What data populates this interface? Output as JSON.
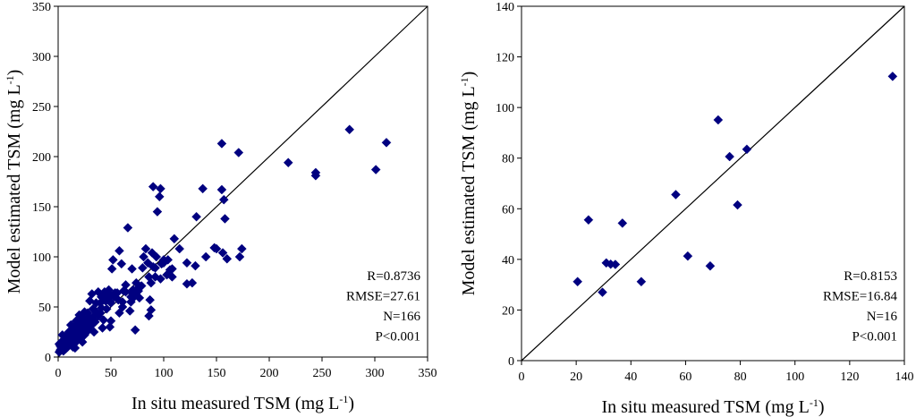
{
  "chart_data": [
    {
      "type": "scatter",
      "xlabel": "In situ measured TSM (mg L",
      "xlabel_sup": "-1",
      "xlabel_tail": ")",
      "ylabel": "Model estimated TSM (mg L",
      "ylabel_sup": "-1",
      "ylabel_tail": ")",
      "xlim": [
        0,
        350
      ],
      "ylim": [
        0,
        350
      ],
      "xticks": [
        "0",
        "50",
        "100",
        "150",
        "200",
        "250",
        "300",
        "350"
      ],
      "yticks": [
        "0",
        "50",
        "100",
        "150",
        "200",
        "250",
        "300",
        "350"
      ],
      "grid": false,
      "reference_line": "1:1",
      "marker_color": "#000080",
      "stats": [
        "R=0.8736",
        "RMSE=27.61",
        "N=166",
        "P<0.001"
      ],
      "points": [
        [
          311,
          214
        ],
        [
          301,
          187
        ],
        [
          276,
          227
        ],
        [
          244,
          184
        ],
        [
          244,
          181
        ],
        [
          218,
          194
        ],
        [
          174,
          108
        ],
        [
          171,
          204
        ],
        [
          172,
          100
        ],
        [
          155,
          213
        ],
        [
          155,
          167
        ],
        [
          157,
          157
        ],
        [
          158,
          138
        ],
        [
          160,
          98
        ],
        [
          156,
          104
        ],
        [
          150,
          108
        ],
        [
          148,
          109
        ],
        [
          137,
          168
        ],
        [
          140,
          100
        ],
        [
          131,
          140
        ],
        [
          130,
          91
        ],
        [
          127,
          74
        ],
        [
          122,
          73
        ],
        [
          122,
          94
        ],
        [
          115,
          108
        ],
        [
          110,
          118
        ],
        [
          108,
          88
        ],
        [
          108,
          80
        ],
        [
          106,
          87
        ],
        [
          104,
          97
        ],
        [
          103,
          82
        ],
        [
          100,
          94
        ],
        [
          100,
          97
        ],
        [
          98,
          93
        ],
        [
          97,
          78
        ],
        [
          97,
          168
        ],
        [
          96,
          160
        ],
        [
          94,
          145
        ],
        [
          93,
          100
        ],
        [
          92,
          89
        ],
        [
          92,
          80
        ],
        [
          90,
          170
        ],
        [
          89,
          104
        ],
        [
          90,
          90
        ],
        [
          88,
          74
        ],
        [
          86,
          80
        ],
        [
          85,
          94
        ],
        [
          87,
          57
        ],
        [
          88,
          47
        ],
        [
          86,
          41
        ],
        [
          83,
          108
        ],
        [
          81,
          100
        ],
        [
          80,
          89
        ],
        [
          79,
          71
        ],
        [
          77,
          59
        ],
        [
          76,
          66
        ],
        [
          75,
          68
        ],
        [
          74,
          74
        ],
        [
          73,
          62
        ],
        [
          73,
          27
        ],
        [
          72,
          60
        ],
        [
          70,
          88
        ],
        [
          71,
          67
        ],
        [
          70,
          64
        ],
        [
          69,
          60
        ],
        [
          69,
          55
        ],
        [
          68,
          46
        ],
        [
          66,
          129
        ],
        [
          64,
          72
        ],
        [
          64,
          65
        ],
        [
          62,
          66
        ],
        [
          61,
          55
        ],
        [
          61,
          50
        ],
        [
          60,
          93
        ],
        [
          58,
          106
        ],
        [
          58,
          44
        ],
        [
          57,
          57
        ],
        [
          56,
          64
        ],
        [
          55,
          59
        ],
        [
          54,
          64
        ],
        [
          53,
          60
        ],
        [
          52,
          97
        ],
        [
          51,
          88
        ],
        [
          50,
          61
        ],
        [
          50,
          54
        ],
        [
          50,
          36
        ],
        [
          49,
          30
        ],
        [
          48,
          67
        ],
        [
          47,
          58
        ],
        [
          46,
          62
        ],
        [
          46,
          48
        ],
        [
          45,
          56
        ],
        [
          44,
          65
        ],
        [
          43,
          37
        ],
        [
          42,
          29
        ],
        [
          41,
          49
        ],
        [
          41,
          60
        ],
        [
          40,
          54
        ],
        [
          40,
          44
        ],
        [
          38,
          41
        ],
        [
          38,
          65
        ],
        [
          36,
          54
        ],
        [
          36,
          45
        ],
        [
          35,
          35
        ],
        [
          34,
          25
        ],
        [
          33,
          48
        ],
        [
          33,
          40
        ],
        [
          32,
          63
        ],
        [
          31,
          31
        ],
        [
          30,
          36
        ],
        [
          30,
          56
        ],
        [
          29,
          40
        ],
        [
          28,
          27
        ],
        [
          28,
          44
        ],
        [
          27,
          25
        ],
        [
          27,
          33
        ],
        [
          26,
          37
        ],
        [
          25,
          22
        ],
        [
          25,
          45
        ],
        [
          24,
          31
        ],
        [
          24,
          38
        ],
        [
          23,
          15
        ],
        [
          22,
          25
        ],
        [
          22,
          36
        ],
        [
          21,
          20
        ],
        [
          21,
          29
        ],
        [
          20,
          42
        ],
        [
          20,
          31
        ],
        [
          19,
          18
        ],
        [
          19,
          24
        ],
        [
          18,
          20
        ],
        [
          18,
          33
        ],
        [
          17,
          26
        ],
        [
          17,
          36
        ],
        [
          16,
          9
        ],
        [
          16,
          14
        ],
        [
          15,
          22
        ],
        [
          15,
          28
        ],
        [
          14,
          18
        ],
        [
          14,
          10
        ],
        [
          13,
          24
        ],
        [
          13,
          16
        ],
        [
          12,
          19
        ],
        [
          12,
          32
        ],
        [
          11,
          13
        ],
        [
          11,
          21
        ],
        [
          10,
          14
        ],
        [
          10,
          25
        ],
        [
          9,
          10
        ],
        [
          9,
          18
        ],
        [
          8,
          16
        ],
        [
          8,
          12
        ],
        [
          7,
          20
        ],
        [
          7,
          8
        ],
        [
          6,
          14
        ],
        [
          6,
          10
        ],
        [
          5,
          17
        ],
        [
          5,
          6
        ],
        [
          4,
          22
        ],
        [
          4,
          12
        ],
        [
          3,
          9
        ],
        [
          3,
          15
        ],
        [
          2,
          7
        ],
        [
          2,
          11
        ],
        [
          1,
          5
        ],
        [
          1,
          13
        ]
      ]
    },
    {
      "type": "scatter",
      "xlabel": "In situ measured TSM (mg L",
      "xlabel_sup": "-1",
      "xlabel_tail": ")",
      "ylabel": "Model estimated TSM (mg L",
      "ylabel_sup": "-1",
      "ylabel_tail": ")",
      "xlim": [
        0,
        140
      ],
      "ylim": [
        0,
        140
      ],
      "xticks": [
        "0",
        "20",
        "40",
        "60",
        "80",
        "100",
        "120",
        "140"
      ],
      "yticks": [
        "0",
        "20",
        "40",
        "60",
        "80",
        "100",
        "120",
        "140"
      ],
      "grid": false,
      "reference_line": "1:1",
      "marker_color": "#000080",
      "stats": [
        "R=0.8153",
        "RMSE=16.84",
        "N=16",
        "P<0.001"
      ],
      "points": [
        [
          20.5,
          31.2
        ],
        [
          24.5,
          55.6
        ],
        [
          29.6,
          27
        ],
        [
          31,
          38.6
        ],
        [
          32.6,
          38.1
        ],
        [
          34.3,
          38
        ],
        [
          36.9,
          54.3
        ],
        [
          43.8,
          31.2
        ],
        [
          56.4,
          65.6
        ],
        [
          60.8,
          41.3
        ],
        [
          69,
          37.4
        ],
        [
          71.9,
          95.1
        ],
        [
          76.1,
          80.6
        ],
        [
          79,
          61.5
        ],
        [
          82.4,
          83.5
        ],
        [
          135.7,
          112.3
        ]
      ]
    }
  ]
}
